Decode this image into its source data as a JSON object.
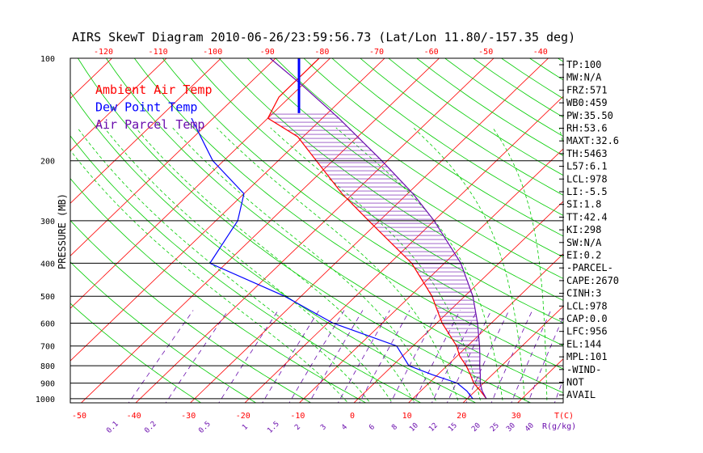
{
  "chart_data": {
    "type": "line",
    "title": "AIRS SkewT Diagram 2010-06-26/23:59:56.73 (Lat/Lon 11.80/-157.35 deg)",
    "ylabel": "PRESSURE (MB)",
    "xlabel": "T(C)",
    "mixing_ratio_unit": "R(g/kg)",
    "pressure_ticks": [
      100,
      200,
      300,
      400,
      500,
      600,
      700,
      800,
      900,
      1000
    ],
    "temp_ticks_top": [
      -120,
      -110,
      -100,
      -90,
      -80,
      -70,
      -60,
      -50,
      -40
    ],
    "temp_ticks_bottom": [
      -50,
      -40,
      -30,
      -20,
      -10,
      0,
      10,
      20,
      30
    ],
    "mixing_ratio_labels": [
      "0.1",
      "0.2",
      "0.5",
      "1",
      "1.5",
      "2",
      "3",
      "4",
      "6",
      "8",
      "10",
      "12",
      "15",
      "20",
      "25",
      "30",
      "40"
    ],
    "legend": [
      {
        "label": "Ambient Air Temp",
        "color": "#ff0000"
      },
      {
        "label": "Dew Point Temp",
        "color": "#0000ff"
      },
      {
        "label": "Air Parcel Temp",
        "color": "#6a0dad"
      }
    ],
    "series": [
      {
        "name": "Ambient Air Temp",
        "points": [
          {
            "p": 1000,
            "t": 23.5
          },
          {
            "p": 950,
            "t": 21.0
          },
          {
            "p": 900,
            "t": 18.2
          },
          {
            "p": 850,
            "t": 16.0
          },
          {
            "p": 800,
            "t": 13.5
          },
          {
            "p": 750,
            "t": 10.5
          },
          {
            "p": 700,
            "t": 8.0
          },
          {
            "p": 600,
            "t": 1.0
          },
          {
            "p": 500,
            "t": -6.0
          },
          {
            "p": 400,
            "t": -16.0
          },
          {
            "p": 300,
            "t": -32.0
          },
          {
            "p": 250,
            "t": -42.0
          },
          {
            "p": 200,
            "t": -53.0
          },
          {
            "p": 170,
            "t": -61.0
          },
          {
            "p": 150,
            "t": -70.0
          },
          {
            "p": 130,
            "t": -72.0
          },
          {
            "p": 100,
            "t": -72.0
          }
        ]
      },
      {
        "name": "Dew Point Temp",
        "points": [
          {
            "p": 1000,
            "t": 21.0
          },
          {
            "p": 950,
            "t": 18.5
          },
          {
            "p": 900,
            "t": 15.2
          },
          {
            "p": 850,
            "t": 9.0
          },
          {
            "p": 800,
            "t": 3.0
          },
          {
            "p": 700,
            "t": -3.0
          },
          {
            "p": 600,
            "t": -19.0
          },
          {
            "p": 500,
            "t": -33.0
          },
          {
            "p": 400,
            "t": -53.0
          },
          {
            "p": 300,
            "t": -56.0
          },
          {
            "p": 250,
            "t": -60.0
          },
          {
            "p": 200,
            "t": -72.0
          },
          {
            "p": 150,
            "t": -84.0
          }
        ]
      },
      {
        "name": "Air Parcel Temp",
        "points": [
          {
            "p": 1000,
            "t": 23.5
          },
          {
            "p": 950,
            "t": 21.3
          },
          {
            "p": 900,
            "t": 19.4
          },
          {
            "p": 850,
            "t": 17.8
          },
          {
            "p": 800,
            "t": 16.0
          },
          {
            "p": 750,
            "t": 14.2
          },
          {
            "p": 700,
            "t": 12.2
          },
          {
            "p": 600,
            "t": 7.5
          },
          {
            "p": 500,
            "t": 1.5
          },
          {
            "p": 400,
            "t": -7.0
          },
          {
            "p": 300,
            "t": -20.0
          },
          {
            "p": 250,
            "t": -29.0
          },
          {
            "p": 200,
            "t": -41.0
          },
          {
            "p": 150,
            "t": -57.0
          },
          {
            "p": 120,
            "t": -70.0
          },
          {
            "p": 100,
            "t": -81.0
          }
        ]
      }
    ],
    "wind_note": "NOT AVAIL"
  },
  "stats": [
    "TP:100",
    "MW:N/A",
    "FRZ:571",
    "WB0:459",
    "PW:35.50",
    "RH:53.6",
    "MAXT:32.6",
    "TH:5463",
    "L57:6.1",
    "LCL:978",
    "LI:-5.5",
    "SI:1.8",
    "TT:42.4",
    "KI:298",
    "SW:N/A",
    "EI:0.2",
    "-PARCEL-",
    "CAPE:2670",
    "CINH:3",
    "LCL:978",
    "CAP:0.0",
    "LFC:956",
    "EL:144",
    "MPL:101",
    "-WIND-",
    "NOT",
    "AVAIL"
  ],
  "colors": {
    "axis": "#000000",
    "isotherm": "#ff0000",
    "dry_adiabat": "#00cc00",
    "moist_adiabat": "#00cc00",
    "mixing_ratio": "#6a0dad",
    "title": "#000000",
    "bottom_ticks": "#ff0000",
    "mixing_labels": "#6a0dad"
  }
}
